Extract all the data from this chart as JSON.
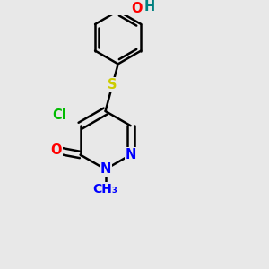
{
  "bg_color": "#e8e8e8",
  "bond_color": "#000000",
  "bond_width": 1.8,
  "atom_colors": {
    "N": "#0000ff",
    "O": "#ff0000",
    "H": "#008080",
    "S": "#cccc00",
    "Cl": "#00bb00",
    "C": "#000000"
  },
  "font_size": 10.5,
  "dbo": 0.014
}
